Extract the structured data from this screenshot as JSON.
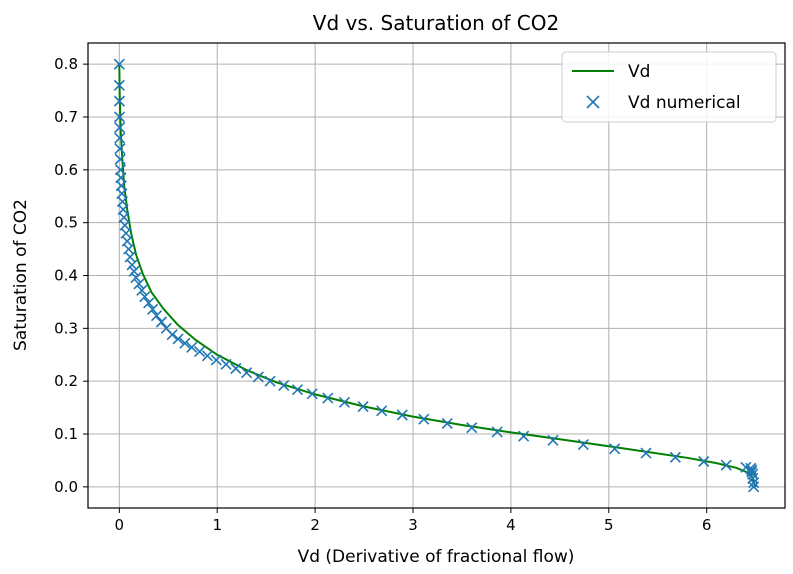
{
  "chart_data": {
    "type": "line",
    "title": "Vd vs. Saturation of CO2",
    "xlabel": "Vd (Derivative of fractional flow)",
    "ylabel": "Saturation of CO2",
    "xlim": [
      -0.32,
      6.8
    ],
    "ylim": [
      -0.04,
      0.84
    ],
    "xticks": [
      "0",
      "1",
      "2",
      "3",
      "4",
      "5",
      "6"
    ],
    "xtick_values": [
      0,
      1,
      2,
      3,
      4,
      5,
      6
    ],
    "yticks": [
      "0.0",
      "0.1",
      "0.2",
      "0.3",
      "0.4",
      "0.5",
      "0.6",
      "0.7",
      "0.8"
    ],
    "ytick_values": [
      0.0,
      0.1,
      0.2,
      0.3,
      0.4,
      0.5,
      0.6,
      0.7,
      0.8
    ],
    "grid": true,
    "legend_position": "top-right",
    "series": [
      {
        "name": "Vd",
        "style": "line",
        "color": "#008000",
        "x": [
          6.5,
          6.45,
          6.3,
          6.1,
          5.8,
          5.4,
          5.0,
          4.5,
          4.0,
          3.5,
          3.0,
          2.5,
          2.0,
          1.6,
          1.3,
          1.0,
          0.78,
          0.6,
          0.45,
          0.33,
          0.24,
          0.17,
          0.12,
          0.08,
          0.05,
          0.03,
          0.015,
          0.005,
          0.0
        ],
        "y": [
          0.0,
          0.025,
          0.036,
          0.045,
          0.055,
          0.066,
          0.077,
          0.09,
          0.103,
          0.117,
          0.133,
          0.152,
          0.175,
          0.198,
          0.221,
          0.25,
          0.278,
          0.306,
          0.337,
          0.368,
          0.403,
          0.44,
          0.48,
          0.525,
          0.57,
          0.62,
          0.67,
          0.73,
          0.8
        ]
      },
      {
        "name": "Vd numerical",
        "style": "marker-x",
        "color": "#1f77b4",
        "x": [
          6.48,
          6.48,
          6.47,
          6.47,
          6.46,
          6.46,
          6.45,
          6.4,
          6.2,
          5.97,
          5.68,
          5.38,
          5.06,
          4.74,
          4.43,
          4.13,
          3.86,
          3.6,
          3.35,
          3.11,
          2.89,
          2.68,
          2.49,
          2.3,
          2.13,
          1.97,
          1.82,
          1.68,
          1.54,
          1.42,
          1.3,
          1.19,
          1.09,
          0.99,
          0.9,
          0.82,
          0.74,
          0.67,
          0.6,
          0.54,
          0.48,
          0.43,
          0.38,
          0.34,
          0.3,
          0.26,
          0.23,
          0.2,
          0.17,
          0.15,
          0.13,
          0.11,
          0.095,
          0.08,
          0.068,
          0.057,
          0.047,
          0.039,
          0.032,
          0.026,
          0.02,
          0.016,
          0.012,
          0.009,
          0.006,
          0.004,
          0.003,
          0.002,
          0.001,
          0.0,
          0.0
        ],
        "y": [
          0.0,
          0.008,
          0.016,
          0.024,
          0.028,
          0.032,
          0.035,
          0.037,
          0.041,
          0.048,
          0.056,
          0.064,
          0.072,
          0.08,
          0.088,
          0.096,
          0.104,
          0.112,
          0.12,
          0.128,
          0.136,
          0.144,
          0.152,
          0.16,
          0.168,
          0.176,
          0.184,
          0.192,
          0.2,
          0.208,
          0.216,
          0.224,
          0.232,
          0.24,
          0.248,
          0.256,
          0.264,
          0.272,
          0.28,
          0.288,
          0.3,
          0.312,
          0.324,
          0.336,
          0.348,
          0.36,
          0.372,
          0.384,
          0.396,
          0.408,
          0.42,
          0.435,
          0.45,
          0.465,
          0.48,
          0.495,
          0.51,
          0.525,
          0.54,
          0.555,
          0.57,
          0.585,
          0.6,
          0.62,
          0.64,
          0.66,
          0.68,
          0.7,
          0.73,
          0.76,
          0.8
        ]
      }
    ]
  }
}
